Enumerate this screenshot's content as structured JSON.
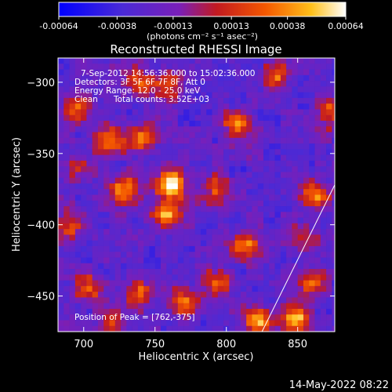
{
  "chart_data": {
    "type": "heatmap",
    "title": "Reconstructed RHESSI Image",
    "xlabel": "Heliocentric X (arcsec)",
    "ylabel": "Heliocentric Y (arcsec)",
    "xlim": [
      682,
      876
    ],
    "ylim": [
      -475,
      -283
    ],
    "x_ticks": [
      700,
      750,
      800,
      850
    ],
    "y_ticks": [
      -300,
      -350,
      -400,
      -450
    ],
    "colorbar": {
      "range": [
        -0.00064,
        0.00064
      ],
      "tick_values": [
        -0.00064,
        -0.00038,
        -0.00013,
        0.00013,
        0.00038,
        0.00064
      ],
      "tick_labels": [
        "-0.00064",
        "-0.00038",
        "-0.00013",
        "0.00013",
        "0.00038",
        "0.00064"
      ],
      "unit_label": "(photons cm⁻² s⁻¹ asec⁻²)",
      "colormap": "blue-purple-red-yellow-white",
      "colormap_stops": [
        "#0000ff",
        "#4a2ad6",
        "#7a1fb8",
        "#c21a20",
        "#f45800",
        "#ffc01a",
        "#ffffff"
      ]
    },
    "annotations": [
      "7-Sep-2012 14:56:36.000 to 15:02:36.000",
      "Detectors: 3F 5F 6F 7F 8F, Att 0",
      "Energy Range: 12.0 - 25.0 keV",
      "Clean",
      "Total counts: 3.52E+03"
    ],
    "peak_label": "Position of Peak = [762,-375]",
    "peak_position": [
      762,
      -375
    ],
    "limb_line": [
      [
        825,
        -475
      ],
      [
        876,
        -372
      ]
    ],
    "grid": false,
    "bright_sources": [
      {
        "x": 762,
        "y": -372,
        "amp": 1.0
      },
      {
        "x": 758,
        "y": -392,
        "amp": 0.85
      },
      {
        "x": 728,
        "y": -375,
        "amp": 0.8
      },
      {
        "x": 822,
        "y": -468,
        "amp": 0.9
      },
      {
        "x": 848,
        "y": -465,
        "amp": 0.85
      },
      {
        "x": 862,
        "y": -378,
        "amp": 0.75
      },
      {
        "x": 770,
        "y": -455,
        "amp": 0.72
      },
      {
        "x": 740,
        "y": -340,
        "amp": 0.7
      },
      {
        "x": 718,
        "y": -340,
        "amp": 0.62
      },
      {
        "x": 760,
        "y": -302,
        "amp": 0.6
      },
      {
        "x": 808,
        "y": -330,
        "amp": 0.65
      },
      {
        "x": 812,
        "y": -415,
        "amp": 0.7
      },
      {
        "x": 872,
        "y": -322,
        "amp": 0.6
      },
      {
        "x": 694,
        "y": -318,
        "amp": 0.58
      },
      {
        "x": 702,
        "y": -445,
        "amp": 0.62
      },
      {
        "x": 740,
        "y": -448,
        "amp": 0.6
      },
      {
        "x": 795,
        "y": -440,
        "amp": 0.55
      },
      {
        "x": 835,
        "y": -295,
        "amp": 0.55
      },
      {
        "x": 690,
        "y": -400,
        "amp": 0.55
      },
      {
        "x": 792,
        "y": -375,
        "amp": 0.5
      },
      {
        "x": 855,
        "y": -410,
        "amp": 0.5
      },
      {
        "x": 740,
        "y": -300,
        "amp": 0.5
      },
      {
        "x": 697,
        "y": -360,
        "amp": 0.45
      },
      {
        "x": 720,
        "y": -470,
        "amp": 0.5
      },
      {
        "x": 860,
        "y": -440,
        "amp": 0.55
      }
    ]
  },
  "timestamp": "14-May-2022 08:22"
}
